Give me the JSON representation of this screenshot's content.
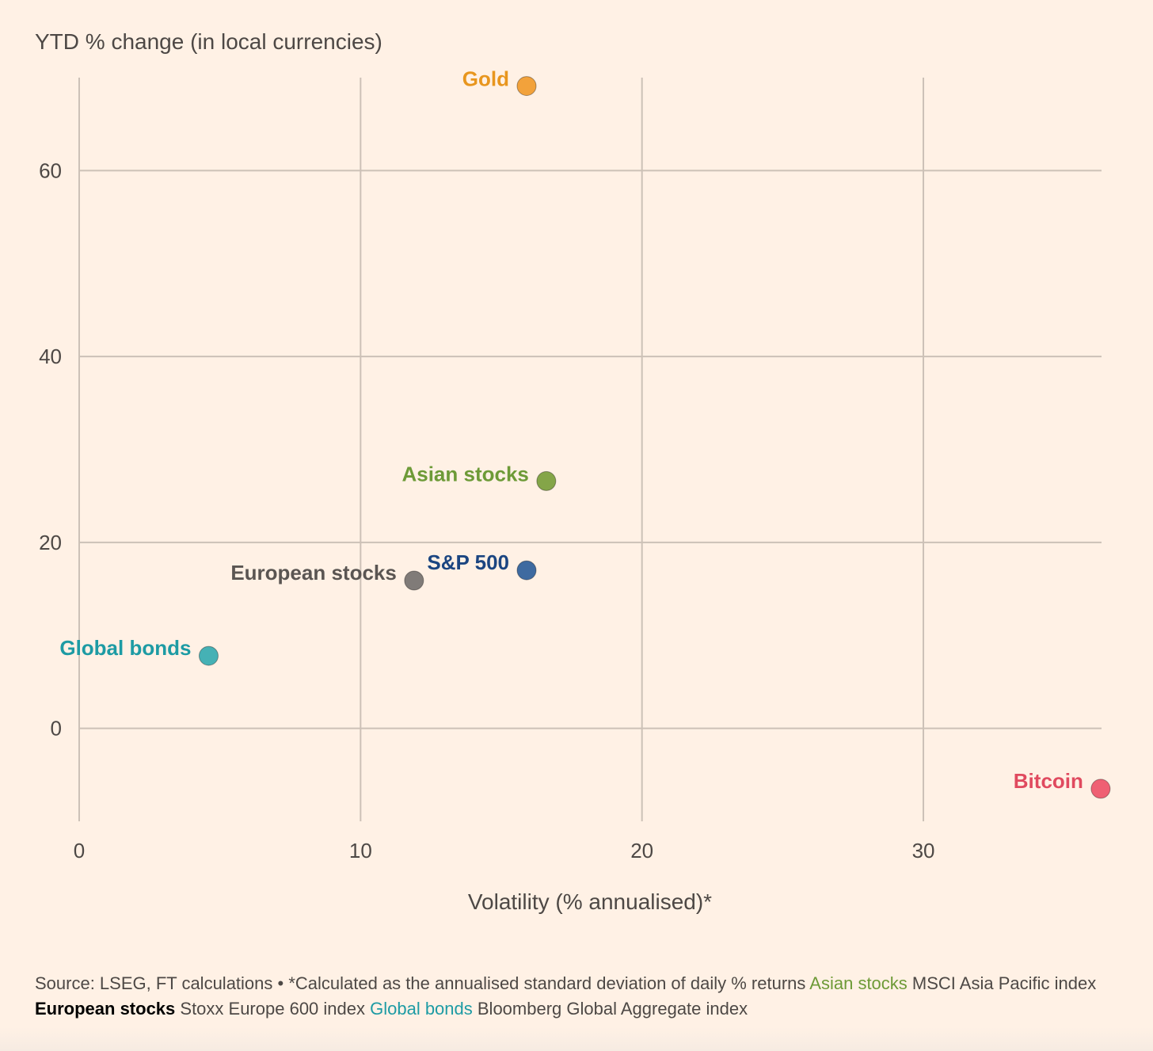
{
  "chart_data": {
    "type": "scatter",
    "title": "YTD % change (in local currencies)",
    "xlabel": "Volatility (% annualised)*",
    "xlim": [
      0,
      36.5
    ],
    "ylim": [
      -10,
      70
    ],
    "xticks": [
      0,
      10,
      20,
      30
    ],
    "yticks": [
      0,
      20,
      40,
      60
    ],
    "grid": true,
    "points": [
      {
        "name": "Gold",
        "x": 15.9,
        "y": 69.1,
        "color": "#f2a23b",
        "label_color": "#e8961e"
      },
      {
        "name": "Asian stocks",
        "x": 16.6,
        "y": 26.6,
        "color": "#84a548",
        "label_color": "#6d9a37"
      },
      {
        "name": "S&P 500",
        "x": 15.9,
        "y": 17.0,
        "color": "#3e6aa0",
        "label_color": "#1b4581"
      },
      {
        "name": "European stocks",
        "x": 11.9,
        "y": 15.9,
        "color": "#807b78",
        "label_color": "#5a5552"
      },
      {
        "name": "Global bonds",
        "x": 4.6,
        "y": 7.8,
        "color": "#45b1b5",
        "label_color": "#1d9ba4"
      },
      {
        "name": "Bitcoin",
        "x": 36.3,
        "y": -6.5,
        "color": "#ef6073",
        "label_color": "#e04a5f"
      }
    ]
  },
  "footer": {
    "source": "Source: LSEG, FT calculations • *Calculated as the annualised standard deviation of daily % returns ",
    "asian_key": "Asian stocks",
    "asian_desc": " MSCI Asia Pacific index ",
    "euro_key": "European stocks",
    "euro_desc": " Stoxx Europe 600 index ",
    "bonds_key": "Global bonds",
    "bonds_desc": " Bloomberg Global Aggregate index"
  }
}
